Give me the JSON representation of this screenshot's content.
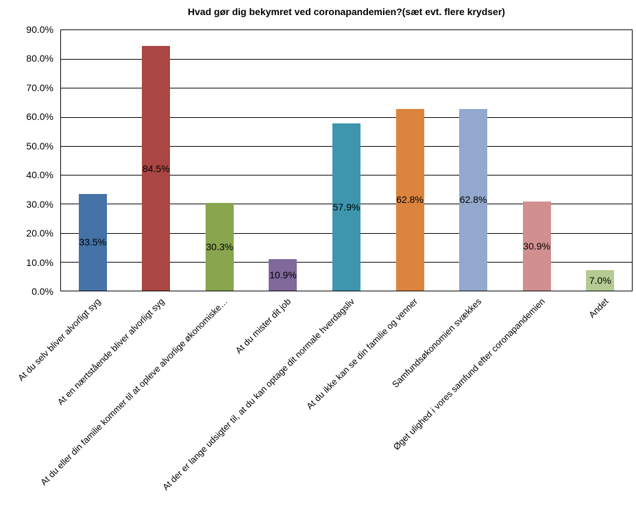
{
  "chart_data": {
    "type": "bar",
    "title": "Hvad gør dig bekymret ved coronapandemien?(sæt evt. flere krydser)",
    "categories": [
      "At du selv bliver alvorligt syg",
      "At en nærtstående bliver alvorligt syg",
      "At du eller din familie kommer til at opleve alvorlige økonomiske…",
      "At du mister dit job",
      "At der er lange udsigter til, at du kan optage dit normale hverdagsliv",
      "At du ikke kan se din familie og venner",
      "Samfundsøkonomien svækkes",
      "Øget ulighed i vores samfund efter coronapandemien",
      "Andet"
    ],
    "values": [
      33.5,
      84.5,
      30.3,
      10.9,
      57.9,
      62.8,
      62.8,
      30.9,
      7.0
    ],
    "data_labels": [
      "33.5%",
      "84.5%",
      "30.3%",
      "10.9%",
      "57.9%",
      "62.8%",
      "62.8%",
      "30.9%",
      "7.0%"
    ],
    "bar_colors": [
      "#4572A7",
      "#AA4643",
      "#89A54E",
      "#80699B",
      "#3D96AE",
      "#DB843D",
      "#92A8CD",
      "#D28F90",
      "#B5CA92"
    ],
    "xlabel": "",
    "ylabel": "",
    "ylim": [
      0,
      90
    ],
    "ytick_step": 10,
    "ytick_labels": [
      "0.0%",
      "10.0%",
      "20.0%",
      "30.0%",
      "40.0%",
      "50.0%",
      "60.0%",
      "70.0%",
      "80.0%",
      "90.0%"
    ],
    "grid": true,
    "legend": "none",
    "data_label_position": "inside-center",
    "x_label_rotation_deg": -45
  }
}
